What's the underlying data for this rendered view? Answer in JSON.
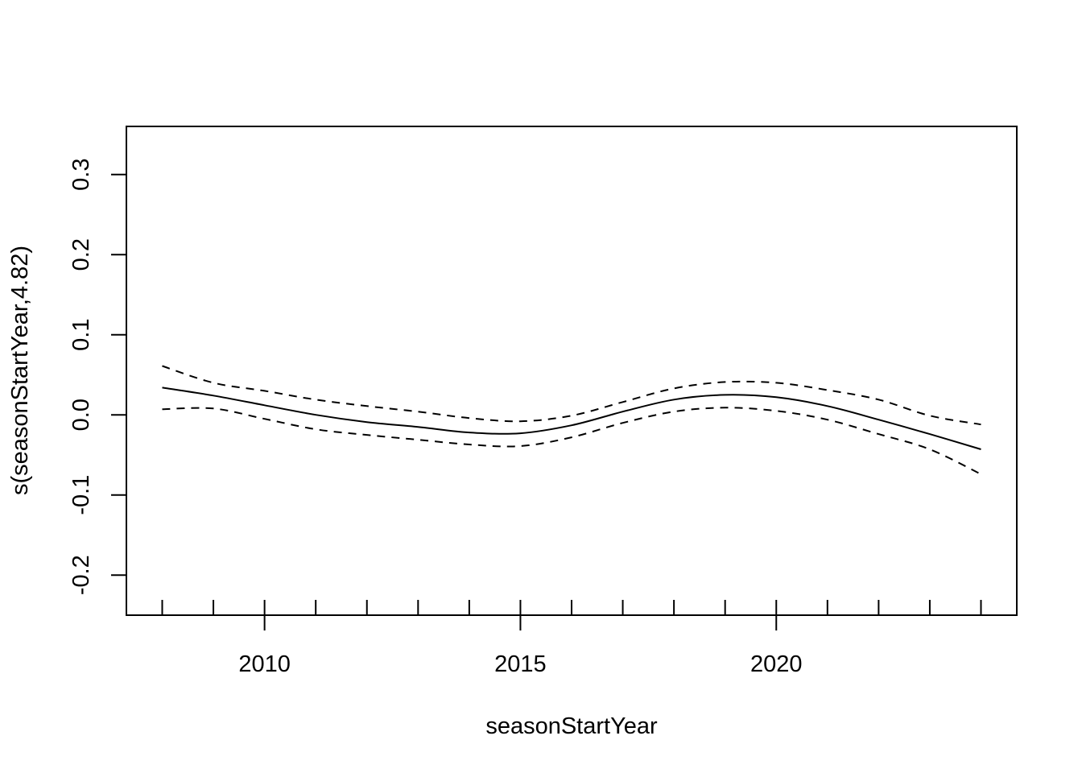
{
  "chart_data": {
    "type": "line",
    "title": "",
    "xlabel": "seasonStartYear",
    "ylabel": "s(seasonStartYear,4.82)",
    "xlim": [
      2007.3,
      2024.7
    ],
    "ylim": [
      -0.25,
      0.36
    ],
    "x_ticks": [
      2010,
      2015,
      2020
    ],
    "x_tick_labels": [
      "2010",
      "2015",
      "2020"
    ],
    "y_ticks": [
      -0.2,
      -0.1,
      0.0,
      0.1,
      0.2,
      0.3
    ],
    "y_tick_labels": [
      "-0.2",
      "-0.1",
      "0.0",
      "0.1",
      "0.2",
      "0.3"
    ],
    "rug": [
      2008,
      2009,
      2010,
      2011,
      2012,
      2013,
      2014,
      2015,
      2016,
      2017,
      2018,
      2019,
      2020,
      2021,
      2022,
      2023,
      2024
    ],
    "grid": false,
    "series": [
      {
        "style": "solid",
        "x": [
          2008,
          2009,
          2010,
          2011,
          2012,
          2013,
          2014,
          2015,
          2016,
          2017,
          2018,
          2019,
          2020,
          2021,
          2022,
          2023,
          2024
        ],
        "y": [
          0.034,
          0.024,
          0.012,
          0.0,
          -0.009,
          -0.015,
          -0.022,
          -0.023,
          -0.013,
          0.004,
          0.019,
          0.025,
          0.022,
          0.011,
          -0.006,
          -0.024,
          -0.043
        ]
      },
      {
        "style": "dashed",
        "x": [
          2008,
          2009,
          2010,
          2011,
          2012,
          2013,
          2014,
          2015,
          2016,
          2017,
          2018,
          2019,
          2020,
          2021,
          2022,
          2023,
          2024
        ],
        "y": [
          0.061,
          0.04,
          0.03,
          0.019,
          0.011,
          0.004,
          -0.004,
          -0.008,
          -0.001,
          0.016,
          0.033,
          0.041,
          0.04,
          0.031,
          0.019,
          -0.001,
          -0.012
        ]
      },
      {
        "style": "dashed",
        "x": [
          2008,
          2009,
          2010,
          2011,
          2012,
          2013,
          2014,
          2015,
          2016,
          2017,
          2018,
          2019,
          2020,
          2021,
          2022,
          2023,
          2024
        ],
        "y": [
          0.007,
          0.008,
          -0.005,
          -0.018,
          -0.025,
          -0.031,
          -0.037,
          -0.039,
          -0.028,
          -0.01,
          0.004,
          0.009,
          0.005,
          -0.006,
          -0.024,
          -0.043,
          -0.074
        ]
      }
    ]
  }
}
